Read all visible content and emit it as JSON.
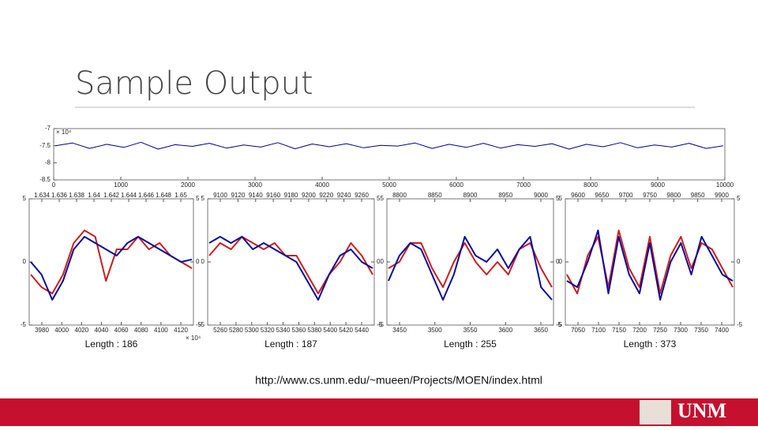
{
  "slide": {
    "title": "Sample Output",
    "url": "http://www.cs.unm.edu/~mueen/Projects/MOEN/index.html",
    "logo": "UNM"
  },
  "chart_data": [
    {
      "type": "line",
      "exponent_label": "× 10⁴",
      "xlim": [
        0,
        10000
      ],
      "xticks": [
        0,
        1000,
        2000,
        3000,
        4000,
        5000,
        6000,
        7000,
        8000,
        9000,
        10000
      ],
      "ylim": [
        -8.5,
        -7
      ],
      "yticks": [
        -7,
        -7.5,
        -8,
        -8.5
      ],
      "series": [
        {
          "color": "#00008b",
          "values": [
            -7.5,
            -7.42,
            -7.58,
            -7.46,
            -7.55,
            -7.4,
            -7.6,
            -7.47,
            -7.52,
            -7.43,
            -7.57,
            -7.48,
            -7.54,
            -7.41,
            -7.59,
            -7.45,
            -7.53,
            -7.44,
            -7.56,
            -7.49,
            -7.51,
            -7.42,
            -7.58,
            -7.46,
            -7.55,
            -7.43,
            -7.57,
            -7.47,
            -7.52,
            -7.44,
            -7.6,
            -7.46,
            -7.53,
            -7.41,
            -7.56,
            -7.48,
            -7.54,
            -7.43,
            -7.58,
            -7.5
          ]
        }
      ]
    },
    {
      "type": "line",
      "length_label": "Length : 186",
      "exponent_label": "× 10⁴",
      "x2ticks": [
        1.634,
        1.636,
        1.638,
        1.64,
        1.642,
        1.644,
        1.646,
        1.648,
        1.65
      ],
      "xticks": [
        3980,
        4000,
        4020,
        4040,
        4060,
        4080,
        4100,
        4120
      ],
      "ylim": [
        -5,
        5
      ],
      "yticks": [
        5,
        0,
        -5
      ],
      "series": [
        {
          "color": "#c81e1e",
          "values": [
            -1,
            -2,
            -2.5,
            -1,
            1.5,
            2.5,
            2,
            -1.5,
            1,
            1,
            2,
            1,
            1.5,
            0.5,
            0,
            -0.5
          ]
        },
        {
          "color": "#0a0a9a",
          "values": [
            0,
            -1,
            -3,
            -1.5,
            1,
            2,
            1.5,
            1,
            0.5,
            1.5,
            2,
            1.5,
            1,
            0.5,
            0,
            0.2
          ]
        }
      ]
    },
    {
      "type": "line",
      "length_label": "Length : 187",
      "x2ticks": [
        9100,
        9120,
        9140,
        9160,
        9180,
        9200,
        9220,
        9240,
        9260
      ],
      "xticks": [
        5260,
        5280,
        5300,
        5320,
        5340,
        5360,
        5380,
        5400,
        5420,
        5440
      ],
      "ylim": [
        -5,
        5
      ],
      "yticks": [
        5,
        0,
        -5
      ],
      "series": [
        {
          "color": "#c81e1e",
          "values": [
            0.5,
            1.5,
            1,
            2,
            1.5,
            1,
            1.5,
            0.5,
            0.5,
            -1,
            -2.5,
            -1,
            0,
            1.5,
            0.5,
            -1
          ]
        },
        {
          "color": "#0a0a9a",
          "values": [
            1.5,
            2,
            1.5,
            2,
            1,
            1.5,
            1,
            0.5,
            0,
            -1.5,
            -3,
            -1,
            0.5,
            1,
            0,
            -0.5
          ]
        }
      ]
    },
    {
      "type": "line",
      "length_label": "Length : 255",
      "x2ticks": [
        8800,
        8850,
        8900,
        8950,
        9000
      ],
      "xticks": [
        3450,
        3500,
        3550,
        3600,
        3650
      ],
      "ylim": [
        -5,
        5
      ],
      "yticks": [
        5,
        0,
        -5
      ],
      "series": [
        {
          "color": "#c81e1e",
          "values": [
            -0.5,
            0,
            1.5,
            1.5,
            -0.5,
            -2,
            0,
            1.5,
            0,
            -1,
            0,
            -1,
            1,
            1.5,
            -0.5,
            -2
          ]
        },
        {
          "color": "#0a0a9a",
          "values": [
            -1.5,
            0.5,
            1.5,
            1,
            -1,
            -3,
            -1,
            2,
            0.5,
            0,
            1,
            -0.5,
            1,
            2,
            -2,
            -3
          ]
        }
      ]
    },
    {
      "type": "line",
      "length_label": "Length : 373",
      "x2ticks": [
        9600,
        9650,
        9700,
        9750,
        9800,
        9850,
        9900
      ],
      "xticks": [
        7050,
        7100,
        7150,
        7200,
        7250,
        7300,
        7350,
        7400
      ],
      "ylim": [
        -5,
        5
      ],
      "yticks": [
        5,
        0,
        -5
      ],
      "series": [
        {
          "color": "#c81e1e",
          "values": [
            -1,
            -2.5,
            0.5,
            2,
            -2,
            2.5,
            -0.5,
            -2,
            2,
            -2.5,
            0.5,
            2,
            -0.5,
            1.5,
            1,
            -0.5,
            -2
          ]
        },
        {
          "color": "#0a0a9a",
          "values": [
            -1.5,
            -2,
            0,
            2.5,
            -2.5,
            2,
            -1,
            -2.5,
            1.5,
            -3,
            0,
            1.5,
            -1,
            2,
            0.5,
            -1,
            -1.5
          ]
        }
      ]
    }
  ]
}
